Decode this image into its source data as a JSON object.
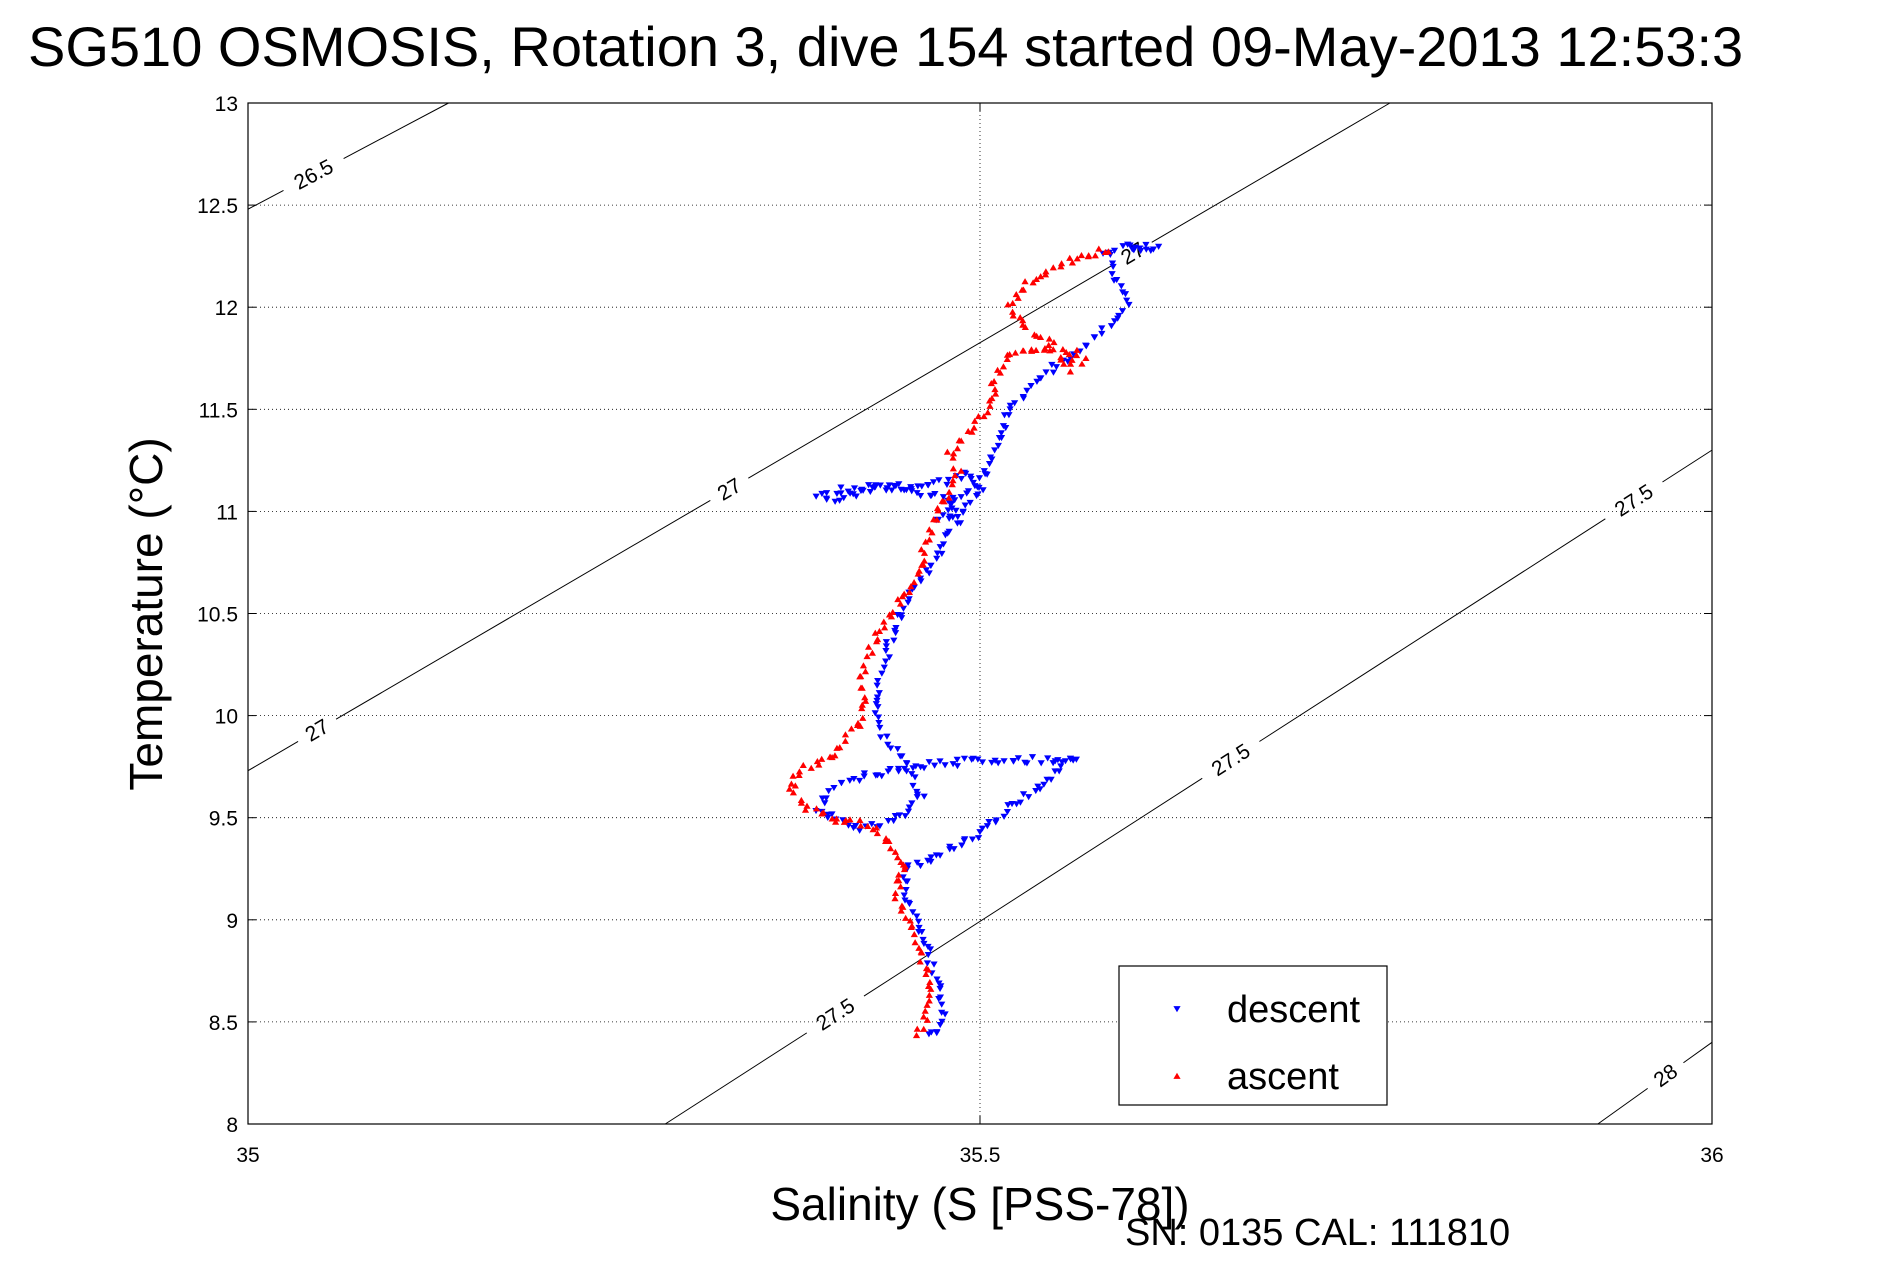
{
  "chart_data": {
    "type": "scatter",
    "title": "SG510 OSMOSIS, Rotation 3, dive 154 started 09-May-2013 12:53:3",
    "xlabel": "Salinity (S [PSS-78])",
    "ylabel": "Temperature (°C)",
    "xlim": [
      35,
      36
    ],
    "ylim": [
      8,
      13
    ],
    "x_ticks": [
      "35",
      "35.5",
      "36"
    ],
    "y_ticks": [
      "8",
      "8.5",
      "9",
      "9.5",
      "10",
      "10.5",
      "11",
      "11.5",
      "12",
      "12.5",
      "13"
    ],
    "x_tick_values": [
      35,
      35.5,
      36
    ],
    "y_tick_values": [
      8,
      8.5,
      9,
      9.5,
      10,
      10.5,
      11,
      11.5,
      12,
      12.5,
      13
    ],
    "grid": true,
    "legend": {
      "placement": "bottom-right",
      "entries": [
        "descent",
        "ascent"
      ]
    },
    "footer": "SN: 0135  CAL: 111810",
    "colors": {
      "descent": "#0000ff",
      "ascent": "#ff0000",
      "contour": "#000000"
    },
    "isopycnals": [
      {
        "label": "26.5",
        "points": [
          [
            35.0,
            12.48
          ],
          [
            35.137,
            13.0
          ]
        ],
        "labels_at": [
          [
            35.047,
            12.62
          ]
        ]
      },
      {
        "label": "27",
        "points": [
          [
            35.0,
            9.73
          ],
          [
            35.78,
            13.0
          ]
        ],
        "labels_at": [
          [
            35.047,
            9.93
          ],
          [
            35.327,
            11.13
          ],
          [
            35.603,
            12.28
          ]
        ]
      },
      {
        "label": "27.5",
        "points": [
          [
            35.285,
            8.0
          ],
          [
            36.0,
            11.3
          ]
        ],
        "labels_at": [
          [
            35.4,
            8.55
          ],
          [
            35.668,
            9.82
          ],
          [
            35.947,
            11.05
          ]
        ]
      },
      {
        "label": "28",
        "points": [
          [
            35.922,
            8.0
          ],
          [
            36.0,
            8.4
          ]
        ],
        "labels_at": [
          [
            35.968,
            8.24
          ]
        ]
      }
    ],
    "series": [
      {
        "name": "descent",
        "marker": "triangle-down",
        "path": [
          [
            35.463,
            8.44
          ],
          [
            35.47,
            8.45
          ],
          [
            35.475,
            8.5
          ],
          [
            35.474,
            8.6
          ],
          [
            35.47,
            8.7
          ],
          [
            35.465,
            8.82
          ],
          [
            35.46,
            8.95
          ],
          [
            35.455,
            9.05
          ],
          [
            35.448,
            9.15
          ],
          [
            35.45,
            9.25
          ],
          [
            35.48,
            9.35
          ],
          [
            35.5,
            9.42
          ],
          [
            35.52,
            9.55
          ],
          [
            35.55,
            9.7
          ],
          [
            35.56,
            9.8
          ],
          [
            35.565,
            9.78
          ],
          [
            35.5,
            9.78
          ],
          [
            35.47,
            9.76
          ],
          [
            35.42,
            9.7
          ],
          [
            35.4,
            9.65
          ],
          [
            35.39,
            9.55
          ],
          [
            35.4,
            9.5
          ],
          [
            35.42,
            9.45
          ],
          [
            35.44,
            9.48
          ],
          [
            35.46,
            9.6
          ],
          [
            35.45,
            9.75
          ],
          [
            35.43,
            9.95
          ],
          [
            35.43,
            10.1
          ],
          [
            35.435,
            10.25
          ],
          [
            35.44,
            10.4
          ],
          [
            35.45,
            10.55
          ],
          [
            35.465,
            10.7
          ],
          [
            35.475,
            10.85
          ],
          [
            35.485,
            10.95
          ],
          [
            35.48,
            11.05
          ],
          [
            35.455,
            11.1
          ],
          [
            35.43,
            11.12
          ],
          [
            35.4,
            11.1
          ],
          [
            35.39,
            11.08
          ],
          [
            35.4,
            11.05
          ],
          [
            35.43,
            11.12
          ],
          [
            35.46,
            11.12
          ],
          [
            35.48,
            11.15
          ],
          [
            35.49,
            11.2
          ],
          [
            35.5,
            11.1
          ],
          [
            35.49,
            11.0
          ],
          [
            35.47,
            10.95
          ],
          [
            35.48,
            11.05
          ],
          [
            35.5,
            11.15
          ],
          [
            35.51,
            11.3
          ],
          [
            35.52,
            11.5
          ],
          [
            35.54,
            11.65
          ],
          [
            35.56,
            11.75
          ],
          [
            35.58,
            11.85
          ],
          [
            35.59,
            11.93
          ],
          [
            35.6,
            12.0
          ],
          [
            35.595,
            12.1
          ],
          [
            35.59,
            12.2
          ],
          [
            35.585,
            12.27
          ],
          [
            35.6,
            12.29
          ],
          [
            35.62,
            12.29
          ],
          [
            35.6,
            12.27
          ]
        ]
      },
      {
        "name": "ascent",
        "marker": "triangle-up",
        "path": [
          [
            35.455,
            8.44
          ],
          [
            35.462,
            8.5
          ],
          [
            35.467,
            8.6
          ],
          [
            35.465,
            8.7
          ],
          [
            35.46,
            8.8
          ],
          [
            35.455,
            8.9
          ],
          [
            35.45,
            9.0
          ],
          [
            35.443,
            9.1
          ],
          [
            35.445,
            9.2
          ],
          [
            35.45,
            9.28
          ],
          [
            35.43,
            9.45
          ],
          [
            35.4,
            9.5
          ],
          [
            35.38,
            9.55
          ],
          [
            35.37,
            9.65
          ],
          [
            35.38,
            9.75
          ],
          [
            35.4,
            9.8
          ],
          [
            35.41,
            9.9
          ],
          [
            35.42,
            10.0
          ],
          [
            35.42,
            10.1
          ],
          [
            35.42,
            10.2
          ],
          [
            35.425,
            10.3
          ],
          [
            35.43,
            10.4
          ],
          [
            35.44,
            10.5
          ],
          [
            35.45,
            10.6
          ],
          [
            35.46,
            10.7
          ],
          [
            35.46,
            10.8
          ],
          [
            35.465,
            10.9
          ],
          [
            35.47,
            11.0
          ],
          [
            35.48,
            11.1
          ],
          [
            35.485,
            11.2
          ],
          [
            35.48,
            11.3
          ],
          [
            35.49,
            11.38
          ],
          [
            35.5,
            11.45
          ],
          [
            35.51,
            11.55
          ],
          [
            35.51,
            11.65
          ],
          [
            35.52,
            11.75
          ],
          [
            35.53,
            11.8
          ],
          [
            35.55,
            11.8
          ],
          [
            35.56,
            11.7
          ],
          [
            35.57,
            11.75
          ],
          [
            35.53,
            11.9
          ],
          [
            35.52,
            12.0
          ],
          [
            35.53,
            12.1
          ],
          [
            35.55,
            12.2
          ],
          [
            35.57,
            12.25
          ],
          [
            35.585,
            12.28
          ],
          [
            35.59,
            12.3
          ]
        ]
      }
    ]
  }
}
